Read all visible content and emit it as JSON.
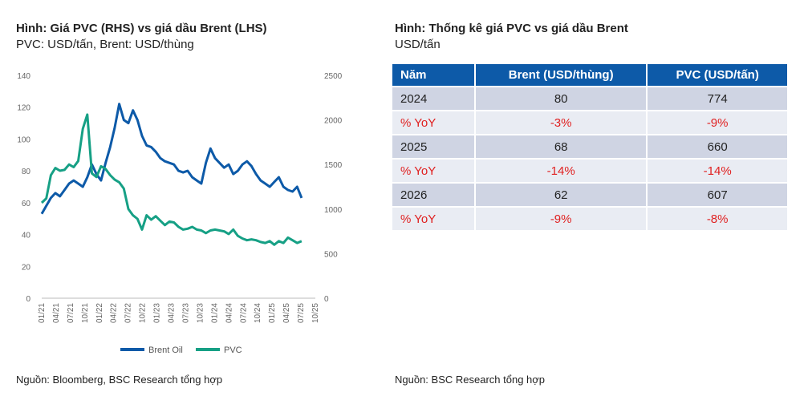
{
  "left_panel": {
    "title": "Hình: Giá PVC (RHS) vs giá dầu Brent (LHS)",
    "subtitle": "PVC: USD/tấn, Brent: USD/thùng",
    "source": "Nguồn: Bloomberg, BSC Research tổng hợp"
  },
  "right_panel": {
    "title": "Hình: Thống kê giá PVC vs giá dầu Brent",
    "subtitle": "USD/tấn",
    "source": "Nguồn: BSC Research tổng hợp"
  },
  "chart_data": {
    "type": "line",
    "left_axis": {
      "ylim": [
        0,
        140
      ],
      "ticks": [
        "0",
        "20",
        "40",
        "60",
        "80",
        "100",
        "120",
        "140"
      ]
    },
    "right_axis": {
      "ylim": [
        0,
        2500
      ],
      "ticks": [
        "0",
        "500",
        "1000",
        "1500",
        "2000",
        "2500"
      ]
    },
    "x_ticks": [
      "01/21",
      "04/21",
      "07/21",
      "10/21",
      "01/22",
      "04/22",
      "07/22",
      "10/22",
      "01/23",
      "04/23",
      "07/23",
      "10/23",
      "01/24",
      "04/24",
      "07/24",
      "10/24",
      "01/25",
      "04/25",
      "07/25",
      "10/25"
    ],
    "x_range": [
      0,
      60
    ],
    "legend": {
      "placement": "bottom",
      "entries": [
        "Brent Oil",
        "PVC"
      ]
    },
    "series": [
      {
        "name": "Brent Oil",
        "axis": "left",
        "color": "#0d5aa8",
        "x": [
          0,
          1,
          2,
          3,
          4,
          5,
          6,
          7,
          8,
          9,
          10,
          11,
          12,
          13,
          14,
          15,
          16,
          17,
          18,
          19,
          20,
          21,
          22,
          23,
          24,
          25,
          26,
          27,
          28,
          29,
          30,
          31,
          32,
          33,
          34,
          35,
          36,
          37,
          38,
          39,
          40,
          41,
          42,
          43,
          44,
          45,
          46,
          47,
          48,
          49,
          50,
          51,
          52,
          53,
          54,
          55,
          56,
          57
        ],
        "y": [
          53,
          58,
          63,
          66,
          64,
          68,
          72,
          74,
          72,
          70,
          76,
          84,
          78,
          74,
          85,
          95,
          107,
          122,
          112,
          110,
          118,
          112,
          102,
          96,
          95,
          92,
          88,
          86,
          85,
          84,
          80,
          79,
          80,
          76,
          74,
          72,
          85,
          94,
          88,
          85,
          82,
          84,
          78,
          80,
          84,
          86,
          83,
          78,
          74,
          72,
          70,
          73,
          76,
          70,
          68,
          67,
          70,
          63
        ]
      },
      {
        "name": "PVC",
        "axis": "right",
        "color": "#16a085",
        "x": [
          0,
          1,
          2,
          3,
          4,
          5,
          6,
          7,
          8,
          9,
          10,
          11,
          12,
          13,
          14,
          15,
          16,
          17,
          18,
          19,
          20,
          21,
          22,
          23,
          24,
          25,
          26,
          27,
          28,
          29,
          30,
          31,
          32,
          33,
          34,
          35,
          36,
          37,
          38,
          39,
          40,
          41,
          42,
          43,
          44,
          45,
          46,
          47,
          48,
          49,
          50,
          51,
          52,
          53,
          54,
          55,
          56,
          57
        ],
        "y": [
          1070,
          1120,
          1380,
          1460,
          1430,
          1440,
          1500,
          1470,
          1540,
          1900,
          2060,
          1400,
          1360,
          1480,
          1450,
          1380,
          1330,
          1300,
          1230,
          1000,
          930,
          890,
          770,
          930,
          880,
          920,
          870,
          820,
          860,
          850,
          800,
          770,
          780,
          800,
          770,
          760,
          730,
          760,
          770,
          760,
          750,
          720,
          770,
          700,
          670,
          650,
          660,
          650,
          630,
          620,
          640,
          600,
          640,
          620,
          680,
          650,
          620,
          640
        ]
      }
    ]
  },
  "table": {
    "headers": [
      "Năm",
      "Brent (USD/thùng)",
      "PVC (USD/tấn)"
    ],
    "rows": [
      {
        "kind": "year",
        "cells": [
          "2024",
          "80",
          "774"
        ]
      },
      {
        "kind": "yoy",
        "cells": [
          "% YoY",
          "-3%",
          "-9%"
        ]
      },
      {
        "kind": "year",
        "cells": [
          "2025",
          "68",
          "660"
        ]
      },
      {
        "kind": "yoy",
        "cells": [
          "% YoY",
          "-14%",
          "-14%"
        ]
      },
      {
        "kind": "year",
        "cells": [
          "2026",
          "62",
          "607"
        ]
      },
      {
        "kind": "yoy",
        "cells": [
          "% YoY",
          "-9%",
          "-8%"
        ]
      }
    ]
  }
}
